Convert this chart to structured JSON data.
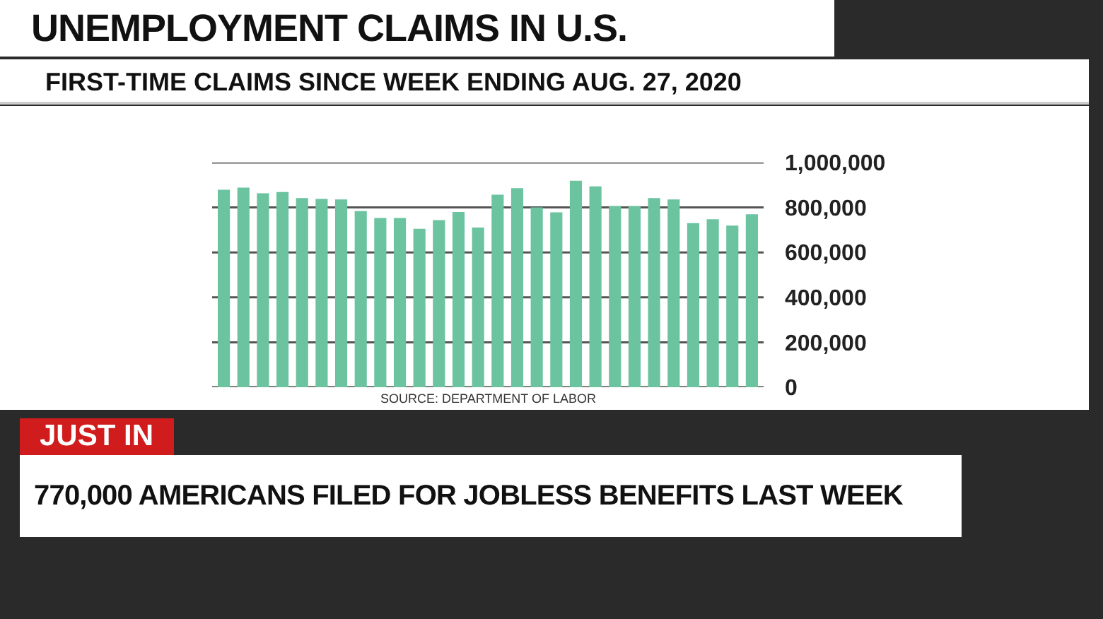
{
  "chart_data": {
    "type": "bar",
    "title": "UNEMPLOYMENT CLAIMS IN U.S.",
    "subtitle": "FIRST-TIME CLAIMS SINCE WEEK ENDING AUG. 27, 2020",
    "categories": [
      null,
      null,
      null,
      null,
      null,
      null,
      null,
      null,
      null,
      null,
      null,
      null,
      null,
      null,
      null,
      null,
      null,
      null,
      null,
      null,
      null,
      null,
      null,
      null,
      null,
      null,
      null,
      null
    ],
    "values": [
      879000,
      888000,
      863000,
      869000,
      842000,
      838000,
      836000,
      784000,
      753000,
      753000,
      705000,
      744000,
      780000,
      711000,
      857000,
      886000,
      800000,
      778000,
      919000,
      894000,
      807000,
      807000,
      842000,
      836000,
      730000,
      748000,
      719000,
      770000
    ],
    "color": "#6cc3a0",
    "ylim": [
      0,
      1000000
    ],
    "yticks": [
      {
        "value": 0,
        "label": "0"
      },
      {
        "value": 200000,
        "label": "200,000"
      },
      {
        "value": 400000,
        "label": "400,000"
      },
      {
        "value": 600000,
        "label": "600,000"
      },
      {
        "value": 800000,
        "label": "800,000"
      },
      {
        "value": 1000000,
        "label": "1,000,000"
      }
    ],
    "grid": "y",
    "tick_labels": "y",
    "annotations": [
      "SOURCE: DEPARTMENT OF LABOR",
      "JUST IN",
      "770,000 AMERICANS FILED FOR JOBLESS BENEFITS LAST WEEK"
    ]
  }
}
